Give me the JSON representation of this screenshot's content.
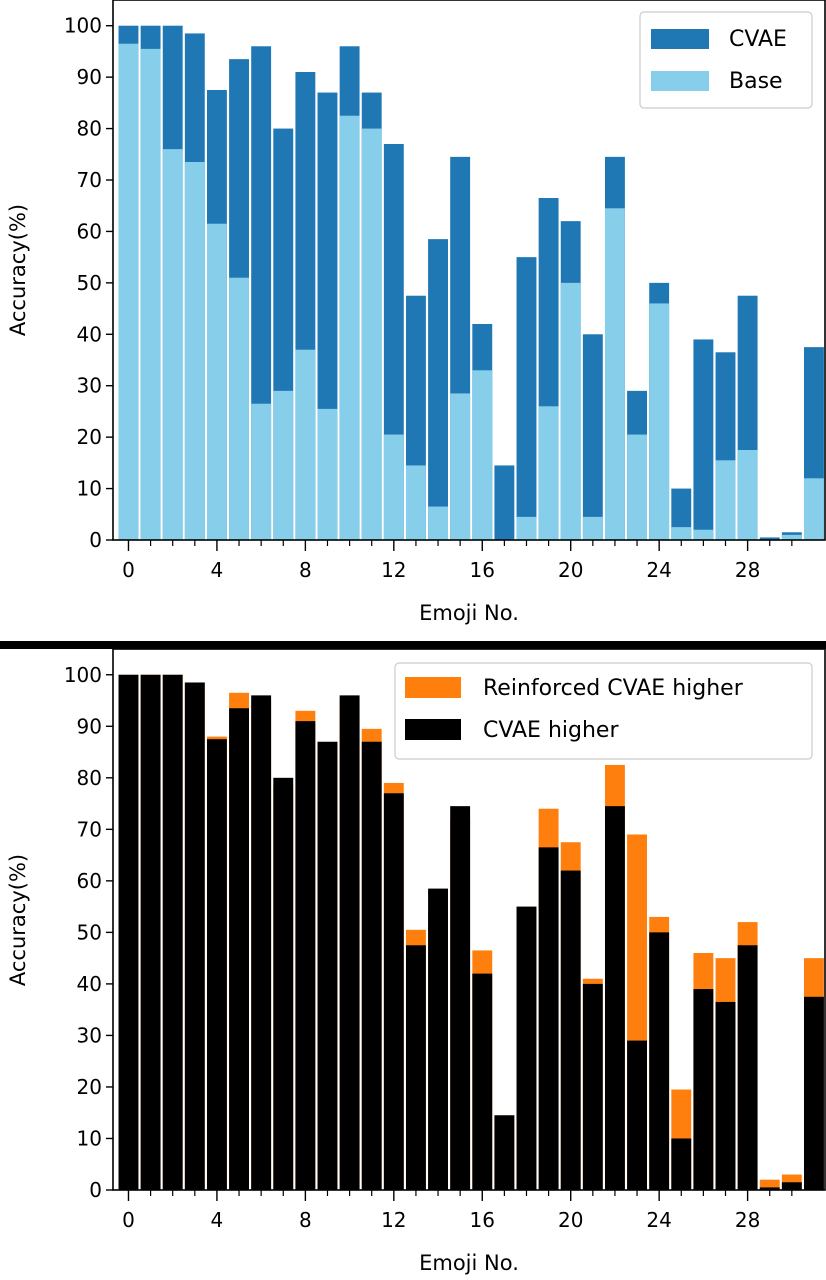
{
  "chart_data": [
    {
      "type": "bar",
      "stacked": "overlay",
      "xlabel": "Emoji No.",
      "ylabel": "Accuracy(%)",
      "ylim": [
        0,
        105
      ],
      "xlim": [
        -0.7,
        31.5
      ],
      "x": [
        0,
        1,
        2,
        3,
        4,
        5,
        6,
        7,
        8,
        9,
        10,
        11,
        12,
        13,
        14,
        15,
        16,
        17,
        18,
        19,
        20,
        21,
        22,
        23,
        24,
        25,
        26,
        27,
        28,
        29,
        30,
        31
      ],
      "xticks": [
        0,
        4,
        8,
        12,
        16,
        20,
        24,
        28
      ],
      "xticks_minor": [
        0,
        1,
        2,
        3,
        4,
        5,
        6,
        7,
        8,
        9,
        10,
        11,
        12,
        13,
        14,
        15,
        16,
        17,
        18,
        19,
        20,
        21,
        22,
        23,
        24,
        25,
        26,
        27,
        28,
        29,
        30
      ],
      "yticks": [
        0,
        10,
        20,
        30,
        40,
        50,
        60,
        70,
        80,
        90,
        100
      ],
      "grid": false,
      "legend_position": "top-right",
      "series": [
        {
          "name": "CVAE",
          "color": "#1f77b4",
          "values": [
            100,
            100,
            100,
            98.5,
            87.5,
            93.5,
            96,
            80,
            91,
            87,
            96,
            87,
            77,
            47.5,
            58.5,
            74.5,
            42,
            14.5,
            55,
            66.5,
            62,
            40,
            74.5,
            29,
            50,
            10,
            39,
            36.5,
            47.5,
            0.5,
            1.5,
            37.5
          ]
        },
        {
          "name": "Base",
          "color": "#87ceeb",
          "values": [
            96.5,
            95.5,
            76,
            73.5,
            61.5,
            51,
            26.5,
            29,
            37,
            25.5,
            82.5,
            80,
            20.5,
            14.5,
            6.5,
            28.5,
            33,
            0,
            4.5,
            26,
            50,
            4.5,
            64.5,
            20.5,
            46,
            2.5,
            2,
            15.5,
            17.5,
            0,
            1,
            12
          ]
        }
      ]
    },
    {
      "type": "bar",
      "stacked": "overlay",
      "xlabel": "Emoji No.",
      "ylabel": "Accuracy(%)",
      "ylim": [
        0,
        105
      ],
      "xlim": [
        -0.7,
        31.5
      ],
      "x": [
        0,
        1,
        2,
        3,
        4,
        5,
        6,
        7,
        8,
        9,
        10,
        11,
        12,
        13,
        14,
        15,
        16,
        17,
        18,
        19,
        20,
        21,
        22,
        23,
        24,
        25,
        26,
        27,
        28,
        29,
        30,
        31
      ],
      "xticks": [
        0,
        4,
        8,
        12,
        16,
        20,
        24,
        28
      ],
      "xticks_minor": [
        0,
        1,
        2,
        3,
        4,
        5,
        6,
        7,
        8,
        9,
        10,
        11,
        12,
        13,
        14,
        15,
        16,
        17,
        18,
        19,
        20,
        21,
        22,
        23,
        24,
        25,
        26,
        27,
        28,
        29,
        30
      ],
      "yticks": [
        0,
        10,
        20,
        30,
        40,
        50,
        60,
        70,
        80,
        90,
        100
      ],
      "grid": false,
      "legend_position": "top-right",
      "series": [
        {
          "name": "Reinforced CVAE higher",
          "color": "#ff7f0e",
          "values": [
            100,
            100,
            100,
            98.5,
            88,
            96.5,
            95,
            78.5,
            93,
            86,
            95.5,
            89.5,
            79,
            50.5,
            54,
            72,
            46.5,
            14.5,
            55,
            74,
            67.5,
            41,
            82.5,
            69,
            53,
            19.5,
            46,
            45,
            52,
            2,
            3,
            45
          ]
        },
        {
          "name": "CVAE higher",
          "color": "#000000",
          "values": [
            100,
            100,
            100,
            98.5,
            87.5,
            93.5,
            96,
            80,
            91,
            87,
            96,
            87,
            77,
            47.5,
            58.5,
            74.5,
            42,
            14.5,
            55,
            66.5,
            62,
            40,
            74.5,
            29,
            50,
            10,
            39,
            36.5,
            47.5,
            0.5,
            1.5,
            37.5
          ]
        }
      ]
    }
  ]
}
